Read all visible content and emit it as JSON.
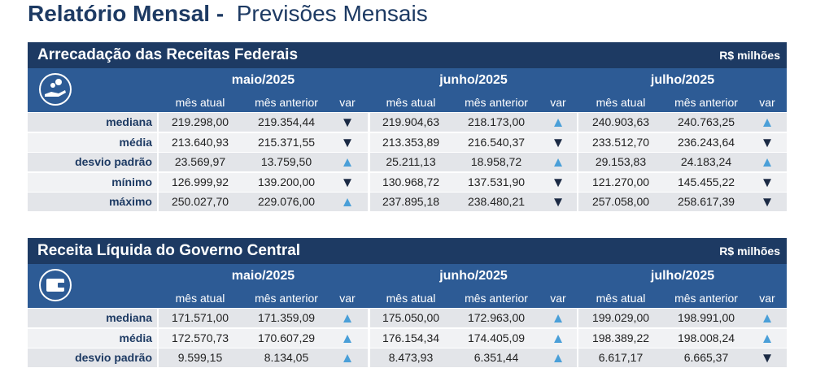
{
  "title": {
    "bold": "Relatório Mensal -",
    "regular": "Previsões Mensais"
  },
  "tables": [
    {
      "title": "Arrecadação das Receitas Federais",
      "unit": "R$ milhões",
      "months": [
        "maio/2025",
        "junho/2025",
        "julho/2025"
      ],
      "columns": [
        "mês atual",
        "mês anterior",
        "var"
      ],
      "rows": [
        {
          "label": "mediana",
          "cells": [
            "219.298,00",
            "219.354,44",
            "▼",
            "219.904,63",
            "218.173,00",
            "▲",
            "240.903,63",
            "240.763,25",
            "▲"
          ]
        },
        {
          "label": "média",
          "cells": [
            "213.640,93",
            "215.371,55",
            "▼",
            "213.353,89",
            "216.540,37",
            "▼",
            "233.512,70",
            "236.243,64",
            "▼"
          ]
        },
        {
          "label": "desvio padrão",
          "cells": [
            "23.569,97",
            "13.759,50",
            "▲",
            "25.211,13",
            "18.958,72",
            "▲",
            "29.153,83",
            "24.183,24",
            "▲"
          ]
        },
        {
          "label": "mínimo",
          "cells": [
            "126.999,92",
            "139.200,00",
            "▼",
            "130.968,72",
            "137.531,90",
            "▼",
            "121.270,00",
            "145.455,22",
            "▼"
          ]
        },
        {
          "label": "máximo",
          "cells": [
            "250.027,70",
            "229.076,00",
            "▲",
            "237.895,18",
            "238.480,21",
            "▼",
            "257.058,00",
            "258.617,39",
            "▼"
          ]
        }
      ]
    },
    {
      "title": "Receita Líquida do Governo Central",
      "unit": "R$ milhões",
      "months": [
        "maio/2025",
        "junho/2025",
        "julho/2025"
      ],
      "columns": [
        "mês atual",
        "mês anterior",
        "var"
      ],
      "rows": [
        {
          "label": "mediana",
          "cells": [
            "171.571,00",
            "171.359,09",
            "▲",
            "175.050,00",
            "172.963,00",
            "▲",
            "199.029,00",
            "198.991,00",
            "▲"
          ]
        },
        {
          "label": "média",
          "cells": [
            "172.570,73",
            "170.607,29",
            "▲",
            "176.154,34",
            "174.405,09",
            "▲",
            "198.389,22",
            "198.008,24",
            "▲"
          ]
        },
        {
          "label": "desvio padrão",
          "cells": [
            "9.599,15",
            "8.134,05",
            "▲",
            "8.473,93",
            "6.351,44",
            "▲",
            "6.617,17",
            "6.665,37",
            "▼"
          ]
        }
      ]
    }
  ]
}
